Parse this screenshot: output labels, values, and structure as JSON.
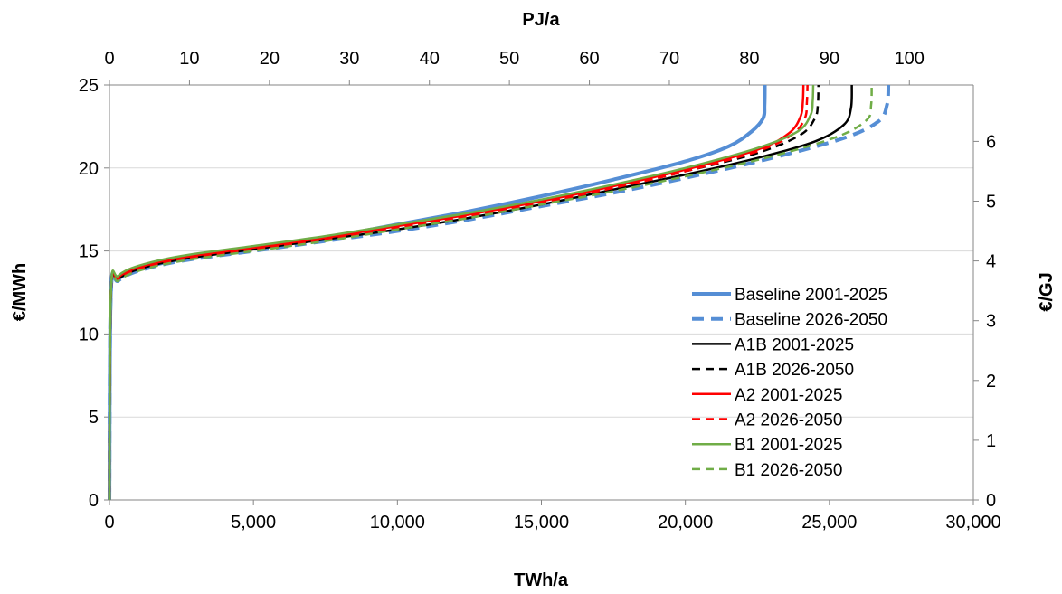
{
  "chart_data": {
    "type": "line",
    "xlabel": "TWh/a",
    "x2label": "PJ/a",
    "ylabel": "€/MWh",
    "y2label": "€/GJ",
    "xlim": [
      0,
      30000
    ],
    "x2lim": [
      0,
      108
    ],
    "ylim": [
      0,
      25
    ],
    "y2lim": [
      0,
      6.944
    ],
    "x_ticks": [
      0,
      5000,
      10000,
      15000,
      20000,
      25000,
      30000
    ],
    "x_tick_labels": [
      "0",
      "5,000",
      "10,000",
      "15,000",
      "20,000",
      "25,000",
      "30,000"
    ],
    "x2_ticks": [
      0,
      10,
      20,
      30,
      40,
      50,
      60,
      70,
      80,
      90,
      100
    ],
    "x2_tick_labels": [
      "0",
      "10",
      "20",
      "30",
      "40",
      "50",
      "60",
      "70",
      "80",
      "90",
      "100"
    ],
    "y_ticks": [
      0,
      5,
      10,
      15,
      20,
      25
    ],
    "y_tick_labels": [
      "0",
      "5",
      "10",
      "15",
      "20",
      "25"
    ],
    "y2_ticks": [
      0,
      1,
      2,
      3,
      4,
      5,
      6
    ],
    "y2_tick_labels": [
      "0",
      "1",
      "2",
      "3",
      "4",
      "5",
      "6"
    ],
    "grid": "horizontal",
    "legend_position": "bottom-right",
    "series": [
      {
        "name": "Baseline 2001-2025",
        "color": "#558ed5",
        "dash": "solid",
        "width": 4,
        "points": [
          [
            0,
            0
          ],
          [
            50,
            12.5
          ],
          [
            300,
            13.3
          ],
          [
            1000,
            13.9
          ],
          [
            2500,
            14.5
          ],
          [
            5000,
            15.2
          ],
          [
            7500,
            15.8
          ],
          [
            10000,
            16.6
          ],
          [
            12500,
            17.4
          ],
          [
            15000,
            18.3
          ],
          [
            17500,
            19.3
          ],
          [
            20000,
            20.4
          ],
          [
            21500,
            21.3
          ],
          [
            22300,
            22.2
          ],
          [
            22700,
            23.0
          ],
          [
            22750,
            23.8
          ],
          [
            22760,
            25
          ]
        ]
      },
      {
        "name": "Baseline 2026-2050",
        "color": "#558ed5",
        "dash": "dashed",
        "width": 4,
        "points": [
          [
            0,
            0
          ],
          [
            50,
            12.5
          ],
          [
            300,
            13.2
          ],
          [
            1000,
            13.8
          ],
          [
            2500,
            14.4
          ],
          [
            5000,
            15.0
          ],
          [
            7500,
            15.6
          ],
          [
            10000,
            16.2
          ],
          [
            12500,
            16.9
          ],
          [
            15000,
            17.7
          ],
          [
            17500,
            18.5
          ],
          [
            20000,
            19.4
          ],
          [
            23000,
            20.6
          ],
          [
            25500,
            21.8
          ],
          [
            26700,
            22.8
          ],
          [
            27000,
            23.8
          ],
          [
            27050,
            25
          ]
        ]
      },
      {
        "name": "A1B 2001-2025",
        "color": "#000000",
        "dash": "solid",
        "width": 2.5,
        "points": [
          [
            0,
            0
          ],
          [
            50,
            12.5
          ],
          [
            300,
            13.3
          ],
          [
            1000,
            13.9
          ],
          [
            2500,
            14.5
          ],
          [
            5000,
            15.1
          ],
          [
            7500,
            15.7
          ],
          [
            10000,
            16.3
          ],
          [
            12500,
            17.0
          ],
          [
            15000,
            17.8
          ],
          [
            17500,
            18.7
          ],
          [
            20000,
            19.6
          ],
          [
            22500,
            20.6
          ],
          [
            24500,
            21.6
          ],
          [
            25500,
            22.6
          ],
          [
            25750,
            23.6
          ],
          [
            25780,
            25
          ]
        ]
      },
      {
        "name": "A1B 2026-2050",
        "color": "#000000",
        "dash": "dashed",
        "width": 2.5,
        "points": [
          [
            0,
            0
          ],
          [
            50,
            12.5
          ],
          [
            300,
            13.3
          ],
          [
            1000,
            13.9
          ],
          [
            2500,
            14.5
          ],
          [
            5000,
            15.1
          ],
          [
            7500,
            15.7
          ],
          [
            10000,
            16.4
          ],
          [
            12500,
            17.1
          ],
          [
            15000,
            17.9
          ],
          [
            17500,
            18.8
          ],
          [
            20000,
            19.8
          ],
          [
            22500,
            20.9
          ],
          [
            24000,
            22.0
          ],
          [
            24500,
            23.0
          ],
          [
            24600,
            23.8
          ],
          [
            24620,
            25
          ]
        ]
      },
      {
        "name": "A2 2001-2025",
        "color": "#ff0000",
        "dash": "solid",
        "width": 2.5,
        "points": [
          [
            0,
            0
          ],
          [
            50,
            12.5
          ],
          [
            300,
            13.4
          ],
          [
            1000,
            14.0
          ],
          [
            2500,
            14.6
          ],
          [
            5000,
            15.2
          ],
          [
            7500,
            15.8
          ],
          [
            10000,
            16.5
          ],
          [
            12500,
            17.2
          ],
          [
            15000,
            18.0
          ],
          [
            17500,
            18.9
          ],
          [
            20000,
            19.9
          ],
          [
            22500,
            21.1
          ],
          [
            23600,
            22.1
          ],
          [
            24000,
            23.1
          ],
          [
            24080,
            24.0
          ],
          [
            24100,
            25
          ]
        ]
      },
      {
        "name": "A2 2026-2050",
        "color": "#ff0000",
        "dash": "dashed",
        "width": 2.5,
        "points": [
          [
            0,
            0
          ],
          [
            50,
            12.5
          ],
          [
            300,
            13.3
          ],
          [
            1000,
            13.9
          ],
          [
            2500,
            14.5
          ],
          [
            5000,
            15.1
          ],
          [
            7500,
            15.7
          ],
          [
            10000,
            16.4
          ],
          [
            12500,
            17.1
          ],
          [
            15000,
            17.9
          ],
          [
            17500,
            18.8
          ],
          [
            20000,
            19.8
          ],
          [
            22500,
            21.0
          ],
          [
            23700,
            22.0
          ],
          [
            24150,
            23.0
          ],
          [
            24220,
            24.0
          ],
          [
            24240,
            25
          ]
        ]
      },
      {
        "name": "B1 2001-2025",
        "color": "#70ad47",
        "dash": "solid",
        "width": 2.5,
        "points": [
          [
            0,
            0
          ],
          [
            50,
            12.6
          ],
          [
            300,
            13.5
          ],
          [
            1000,
            14.1
          ],
          [
            2500,
            14.7
          ],
          [
            5000,
            15.3
          ],
          [
            7500,
            15.9
          ],
          [
            10000,
            16.6
          ],
          [
            12500,
            17.3
          ],
          [
            15000,
            18.1
          ],
          [
            17500,
            19.0
          ],
          [
            20000,
            20.0
          ],
          [
            22500,
            21.2
          ],
          [
            23900,
            22.2
          ],
          [
            24350,
            23.2
          ],
          [
            24420,
            24.0
          ],
          [
            24440,
            25
          ]
        ]
      },
      {
        "name": "B1 2026-2050",
        "color": "#70ad47",
        "dash": "dashed",
        "width": 2.5,
        "points": [
          [
            0,
            0
          ],
          [
            50,
            12.5
          ],
          [
            300,
            13.2
          ],
          [
            1000,
            13.8
          ],
          [
            2500,
            14.4
          ],
          [
            5000,
            15.0
          ],
          [
            7500,
            15.6
          ],
          [
            10000,
            16.3
          ],
          [
            12500,
            17.0
          ],
          [
            15000,
            17.8
          ],
          [
            17500,
            18.6
          ],
          [
            20000,
            19.5
          ],
          [
            23000,
            20.7
          ],
          [
            25300,
            21.9
          ],
          [
            26300,
            22.9
          ],
          [
            26450,
            23.8
          ],
          [
            26470,
            25
          ]
        ]
      }
    ]
  }
}
